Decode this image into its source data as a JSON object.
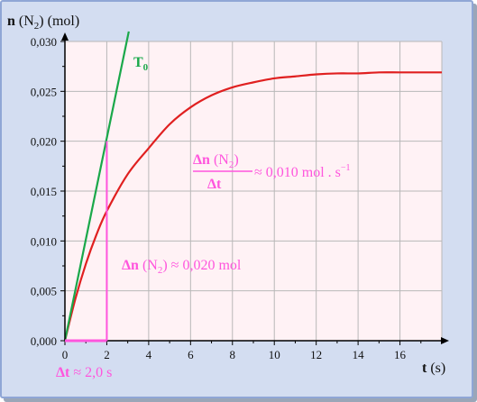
{
  "chart_data": {
    "type": "line",
    "xlabel": "t (s)",
    "ylabel": "n (N2) (mol)",
    "xlim": [
      0,
      18
    ],
    "ylim": [
      0,
      0.03
    ],
    "x_ticks": [
      "0",
      "2",
      "4",
      "6",
      "8",
      "10",
      "12",
      "14",
      "16"
    ],
    "y_ticks": [
      "0,000",
      "0,005",
      "0,010",
      "0,015",
      "0,020",
      "0,025",
      "0,030"
    ],
    "grid": true,
    "series": [
      {
        "name": "n(N2)",
        "color": "#e02020",
        "x": [
          0,
          0.5,
          1,
          1.5,
          2,
          3,
          4,
          5,
          6,
          7,
          8,
          9,
          10,
          11,
          12,
          13,
          14,
          15,
          16,
          17,
          18
        ],
        "y": [
          0,
          0.0042,
          0.0077,
          0.0106,
          0.013,
          0.0167,
          0.0193,
          0.0217,
          0.0234,
          0.0246,
          0.0254,
          0.0259,
          0.0263,
          0.0265,
          0.0267,
          0.0268,
          0.0268,
          0.0269,
          0.0269,
          0.0269,
          0.0269
        ]
      },
      {
        "name": "T0",
        "color": "#1aa84a",
        "x": [
          0,
          3.05
        ],
        "y": [
          0,
          0.031
        ]
      }
    ],
    "annotations": {
      "tangent_label": "T",
      "tangent_sub": "0",
      "dt_value": 2.0,
      "dn_value": 0.02,
      "dt_label_bold": "Δt",
      "dt_label_rest": " ≈ 2,0 s",
      "dn_label_bold": "Δn",
      "dn_label_mid": " (N",
      "dn_label_sub": "2",
      "dn_label_rest": ") ≈ 0,020 mol",
      "rate_num_bold": "Δn",
      "rate_num_mid": " (N",
      "rate_num_sub": "2",
      "rate_num_end": ")",
      "rate_den": "Δt",
      "rate_value": " ≈ 0,010 mol . s",
      "rate_exp": "−1"
    },
    "axis_titles": {
      "y_bold": "n",
      "y_mid": " (N",
      "y_sub": "2",
      "y_rest": ") (mol)",
      "x_bold": "t",
      "x_rest": " (s)"
    },
    "colors": {
      "plot_bg": "#fff2f5",
      "grid": "#b8b8b8",
      "annotation": "#ff55dd"
    }
  }
}
